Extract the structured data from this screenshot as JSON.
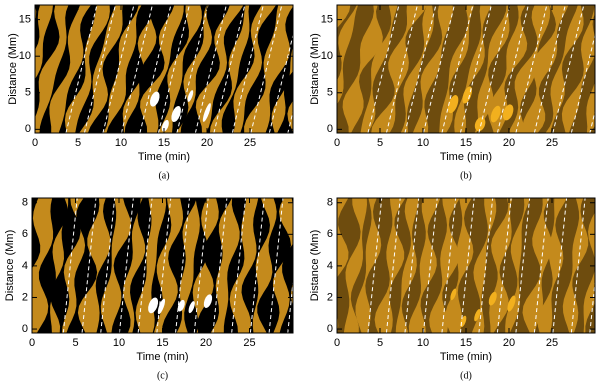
{
  "chart_data": [
    {
      "type": "contour",
      "caption": "(a)",
      "xlabel": "Time (min)",
      "ylabel": "Distance (Mm)",
      "xlim": [
        0,
        30
      ],
      "ylim": [
        -0.5,
        17
      ],
      "xticks": [
        0,
        5,
        10,
        15,
        20,
        25
      ],
      "yticks": [
        0,
        5,
        10,
        15
      ],
      "colors": [
        "#c48a1c",
        "#000000",
        "#ffffff"
      ]
    },
    {
      "type": "contour",
      "caption": "(b)",
      "xlabel": "Time (min)",
      "ylabel": "Distance (Mm)",
      "xlim": [
        0,
        30
      ],
      "ylim": [
        -0.5,
        17
      ],
      "xticks": [
        0,
        5,
        10,
        15,
        20,
        25
      ],
      "yticks": [
        0,
        5,
        10,
        15
      ],
      "colors": [
        "#6e4c0e",
        "#c48a1c",
        "#f2b01e"
      ]
    },
    {
      "type": "contour",
      "caption": "(c)",
      "xlabel": "Time (min)",
      "ylabel": "Distance (Mm)",
      "xlim": [
        0,
        30
      ],
      "ylim": [
        -0.25,
        8.3
      ],
      "xticks": [
        0,
        5,
        10,
        15,
        20,
        25
      ],
      "yticks": [
        0,
        2,
        4,
        6,
        8
      ],
      "colors": [
        "#c48a1c",
        "#000000",
        "#ffffff"
      ]
    },
    {
      "type": "contour",
      "caption": "(d)",
      "xlabel": "Time (min)",
      "ylabel": "Distance (Mm)",
      "xlim": [
        0,
        30
      ],
      "ylim": [
        -0.25,
        8.3
      ],
      "xticks": [
        0,
        5,
        10,
        15,
        20,
        25
      ],
      "yticks": [
        0,
        2,
        4,
        6,
        8
      ],
      "colors": [
        "#6e4c0e",
        "#c48a1c",
        "#f2b01e"
      ]
    }
  ]
}
